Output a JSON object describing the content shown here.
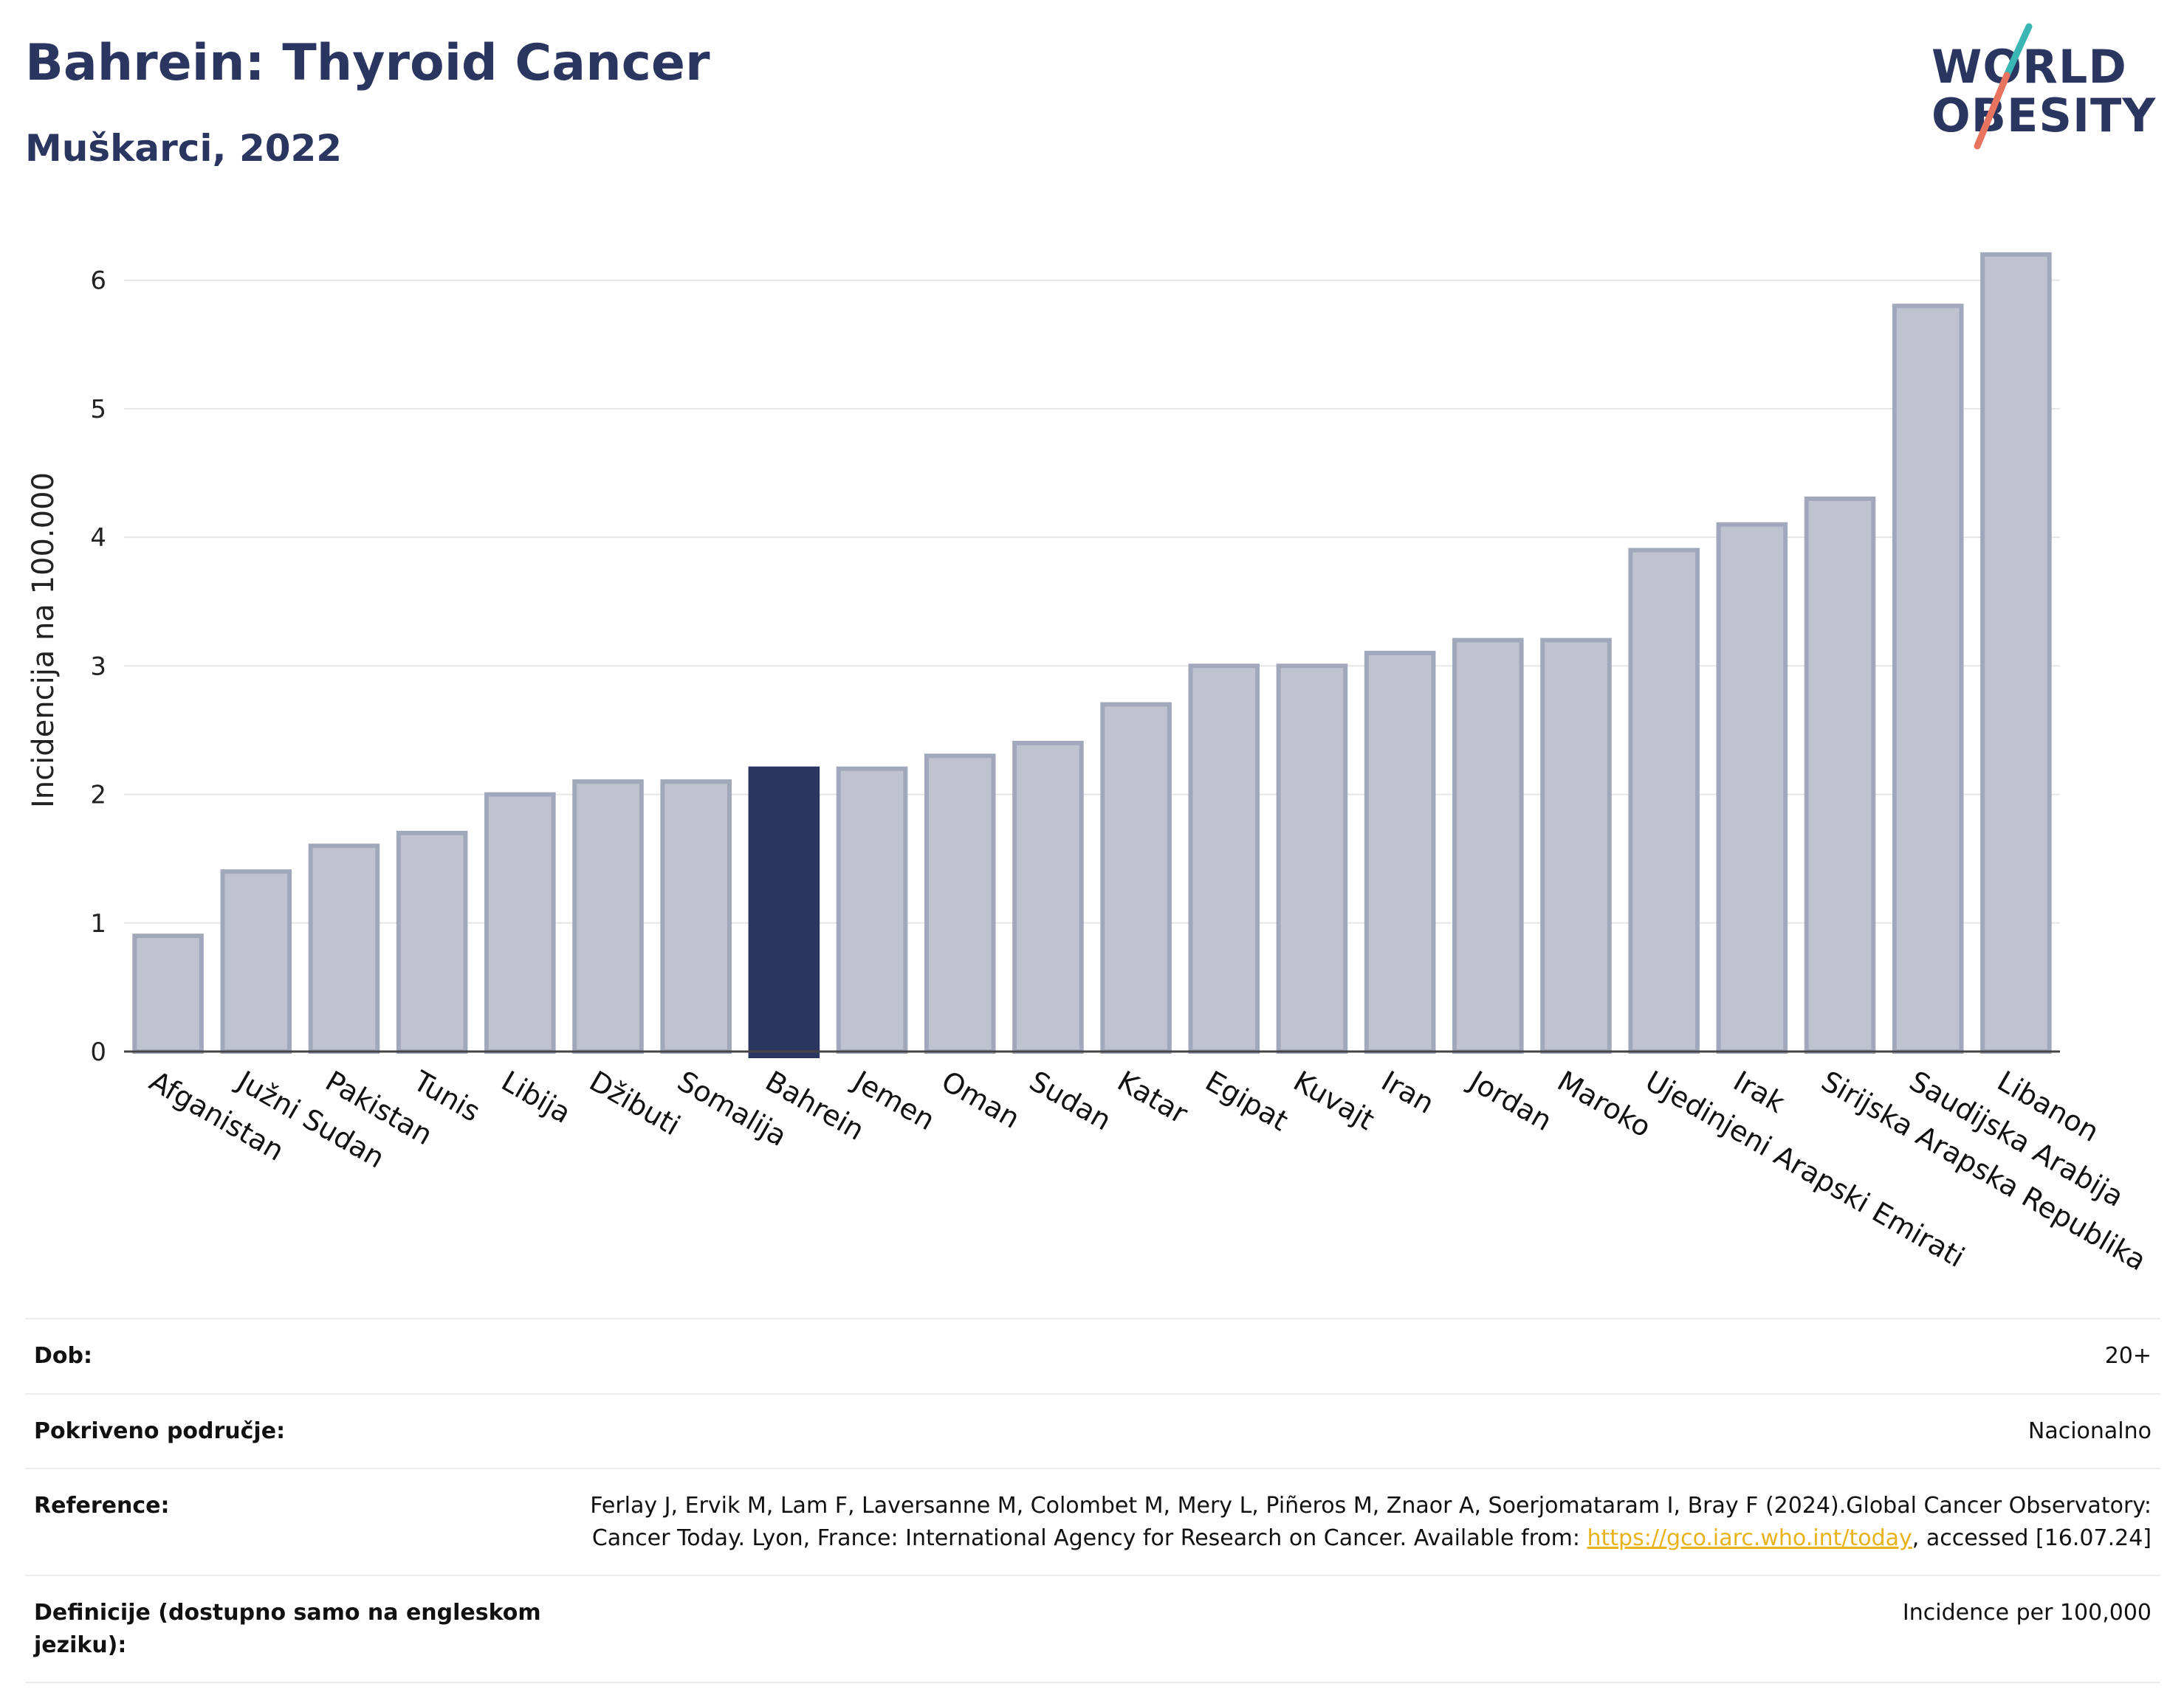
{
  "header": {
    "title": "Bahrein: Thyroid Cancer",
    "subtitle": "Muškarci, 2022",
    "logo_line1": "WORLD",
    "logo_line2": "OBESITY"
  },
  "colors": {
    "accent": "#2b3660",
    "bar_fill": "#bfc3d0",
    "bar_stroke": "#a2a8bc",
    "logo_teal": "#3ab7b5",
    "logo_coral": "#e8735e",
    "link": "#e8b31a"
  },
  "chart_data": {
    "type": "bar",
    "ylabel": "Incidencija na 100.000",
    "ylim": [
      0,
      6.4
    ],
    "yticks": [
      0,
      1,
      2,
      3,
      4,
      5,
      6
    ],
    "grid": true,
    "highlight": "Bahrein",
    "categories": [
      "Afganistan",
      "Južni Sudan",
      "Pakistan",
      "Tunis",
      "Libija",
      "Džibuti",
      "Somalija",
      "Bahrein",
      "Jemen",
      "Oman",
      "Sudan",
      "Katar",
      "Egipat",
      "Kuvajt",
      "Iran",
      "Jordan",
      "Maroko",
      "Ujedinjeni Arapski Emirati",
      "Irak",
      "Sirijska Arapska Republika",
      "Saudijska Arabija",
      "Libanon"
    ],
    "values": [
      0.9,
      1.4,
      1.6,
      1.7,
      2.0,
      2.1,
      2.1,
      2.2,
      2.2,
      2.3,
      2.4,
      2.7,
      3.0,
      3.0,
      3.1,
      3.2,
      3.2,
      3.9,
      4.1,
      4.3,
      5.8,
      6.2
    ]
  },
  "info": {
    "dob_label": "Dob:",
    "dob_value": "20+",
    "coverage_label": "Pokriveno područje:",
    "coverage_value": "Nacionalno",
    "reference_label": "Reference:",
    "reference_text": "Ferlay J, Ervik M, Lam F, Laversanne M, Colombet M, Mery L, Piñeros M, Znaor A, Soerjomataram I, Bray F (2024).Global Cancer Observatory: Cancer Today. Lyon, France: International Agency for Research on Cancer. Available from:",
    "reference_link": "https://gco.iarc.who.int/today",
    "reference_suffix": ", accessed [16.07.24]",
    "definitions_label": "Definicije (dostupno samo na engleskom jeziku):",
    "definitions_value": "Incidence per 100,000"
  }
}
